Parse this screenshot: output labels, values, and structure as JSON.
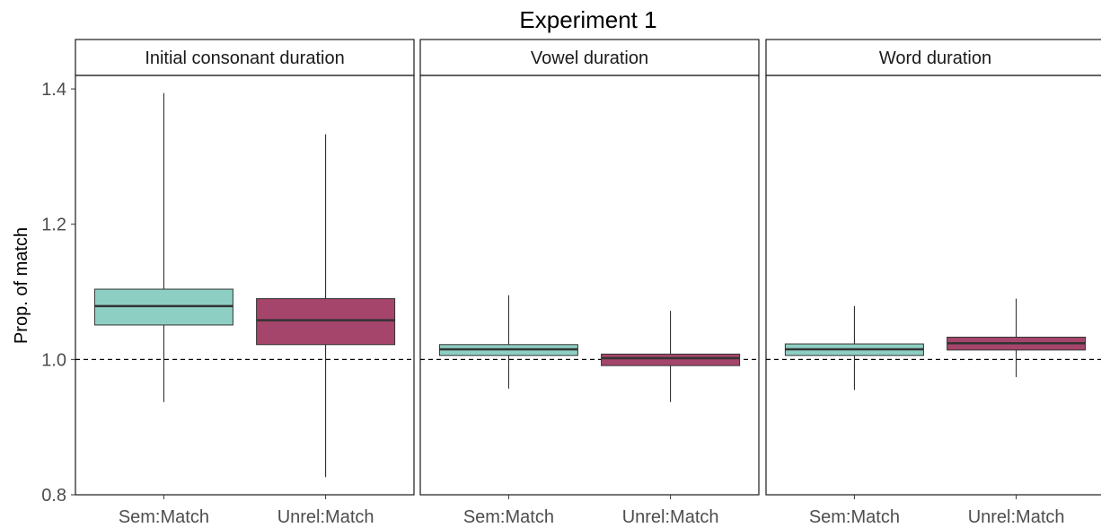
{
  "chart_data": {
    "type": "boxplot",
    "title": "Experiment 1",
    "ylabel": "Prop. of match",
    "xlabel": "",
    "ylim": [
      0.8,
      1.42
    ],
    "yticks": [
      0.8,
      1.0,
      1.2,
      1.4
    ],
    "reference_line": 1.0,
    "grid": false,
    "categories": [
      "Sem:Match",
      "Unrel:Match"
    ],
    "colors": {
      "Sem:Match": "#8ecfc3",
      "Unrel:Match": "#a6456b"
    },
    "panels": [
      {
        "name": "Initial consonant duration",
        "boxes": [
          {
            "category": "Sem:Match",
            "min": 0.937,
            "q1": 1.051,
            "median": 1.079,
            "q3": 1.104,
            "max": 1.394
          },
          {
            "category": "Unrel:Match",
            "min": 0.826,
            "q1": 1.022,
            "median": 1.058,
            "q3": 1.09,
            "max": 1.333
          }
        ]
      },
      {
        "name": "Vowel duration",
        "boxes": [
          {
            "category": "Sem:Match",
            "min": 0.957,
            "q1": 1.006,
            "median": 1.015,
            "q3": 1.022,
            "max": 1.095
          },
          {
            "category": "Unrel:Match",
            "min": 0.937,
            "q1": 0.991,
            "median": 1.002,
            "q3": 1.008,
            "max": 1.072
          }
        ]
      },
      {
        "name": "Word duration",
        "boxes": [
          {
            "category": "Sem:Match",
            "min": 0.955,
            "q1": 1.006,
            "median": 1.015,
            "q3": 1.023,
            "max": 1.079
          },
          {
            "category": "Unrel:Match",
            "min": 0.974,
            "q1": 1.014,
            "median": 1.024,
            "q3": 1.033,
            "max": 1.09
          }
        ]
      }
    ]
  }
}
